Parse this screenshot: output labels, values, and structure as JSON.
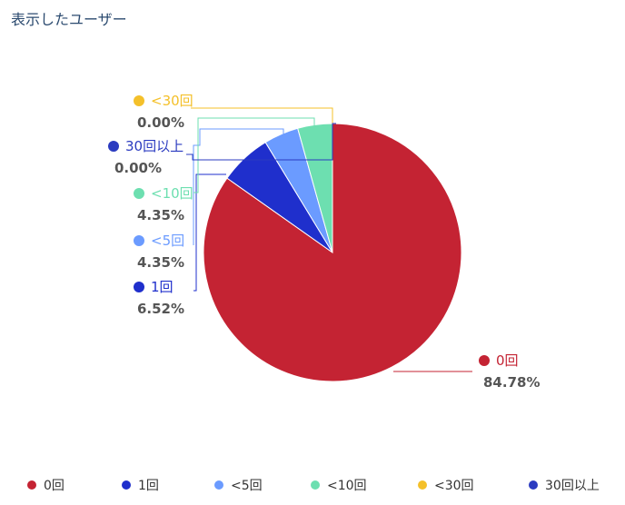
{
  "title": "表示したユーザー",
  "chart_data": {
    "type": "pie",
    "categories": [
      "0回",
      "1回",
      "<5回",
      "<10回",
      "<30回",
      "30回以上"
    ],
    "values": [
      84.78,
      6.52,
      4.35,
      4.35,
      0.0,
      0.0
    ],
    "value_labels": [
      "84.78%",
      "6.52%",
      "4.35%",
      "4.35%",
      "0.00%",
      "0.00%"
    ],
    "colors": [
      "#c42333",
      "#1f2fcc",
      "#6b9bff",
      "#6ddfb0",
      "#f4c02a",
      "#2b3bc0"
    ],
    "legend_position": "bottom"
  }
}
